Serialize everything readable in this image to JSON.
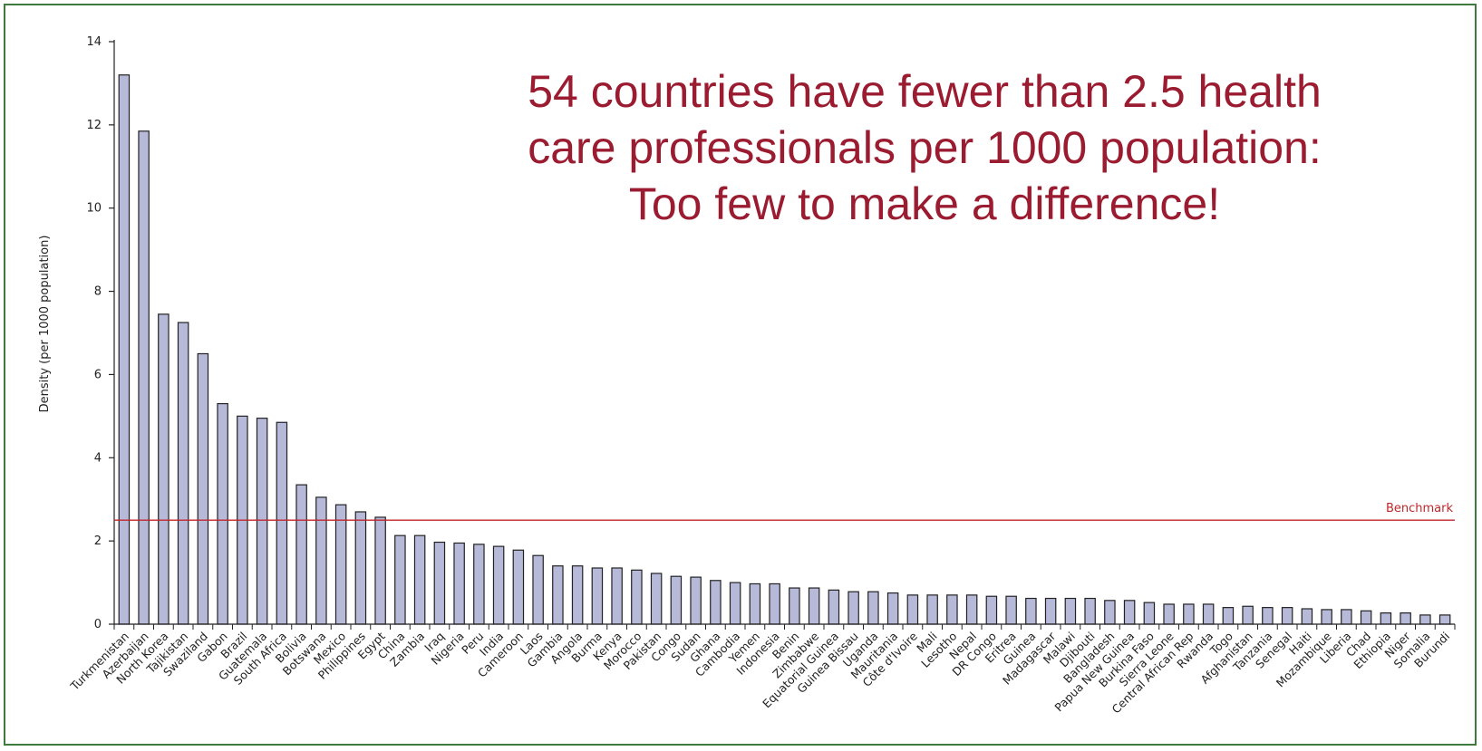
{
  "headline": {
    "line1": "54 countries have fewer than 2.5 health",
    "line2": "care professionals per 1000 population:",
    "line3": "Too few to make a difference!"
  },
  "chart_data": {
    "type": "bar",
    "ylabel": "Density (per 1000 population)",
    "ylim": [
      0,
      14
    ],
    "yticks": [
      0,
      2,
      4,
      6,
      8,
      10,
      12,
      14
    ],
    "grid": false,
    "bar_color": "#b7b9d9",
    "benchmark": {
      "label": "Benchmark",
      "value": 2.5,
      "color": "#c0262a"
    },
    "categories": [
      "Turkmenistan",
      "Azerbaijan",
      "North Korea",
      "Tajikistan",
      "Swaziland",
      "Gabon",
      "Brazil",
      "Guatemala",
      "South Africa",
      "Bolivia",
      "Botswana",
      "Mexico",
      "Philippines",
      "Egypt",
      "China",
      "Zambia",
      "Iraq",
      "Nigeria",
      "Peru",
      "India",
      "Cameroon",
      "Laos",
      "Gambia",
      "Angola",
      "Burma",
      "Kenya",
      "Morocco",
      "Pakistan",
      "Congo",
      "Sudan",
      "Ghana",
      "Cambodia",
      "Yemen",
      "Indonesia",
      "Benin",
      "Zimbabwe",
      "Equatorial Guinea",
      "Guinea Bissau",
      "Uganda",
      "Mauritania",
      "Côte d'Ivoire",
      "Mali",
      "Lesotho",
      "Nepal",
      "DR Congo",
      "Eritrea",
      "Guinea",
      "Madagascar",
      "Malawi",
      "Djibouti",
      "Bangladesh",
      "Papua New Guinea",
      "Burkina Faso",
      "Sierra Leone",
      "Central African Rep",
      "Rwanda",
      "Togo",
      "Afghanistan",
      "Tanzania",
      "Senegal",
      "Haiti",
      "Mozambique",
      "Liberia",
      "Chad",
      "Ethiopia",
      "Niger",
      "Somalia",
      "Burundi"
    ],
    "values": [
      13.2,
      11.85,
      7.45,
      7.25,
      6.5,
      5.3,
      5.0,
      4.95,
      4.85,
      3.35,
      3.05,
      2.87,
      2.7,
      2.57,
      2.13,
      2.13,
      1.97,
      1.95,
      1.92,
      1.87,
      1.78,
      1.65,
      1.4,
      1.4,
      1.35,
      1.35,
      1.3,
      1.22,
      1.15,
      1.13,
      1.05,
      1.0,
      0.97,
      0.97,
      0.87,
      0.87,
      0.82,
      0.78,
      0.78,
      0.75,
      0.7,
      0.7,
      0.7,
      0.7,
      0.67,
      0.67,
      0.62,
      0.62,
      0.62,
      0.62,
      0.57,
      0.57,
      0.52,
      0.48,
      0.48,
      0.48,
      0.4,
      0.43,
      0.4,
      0.4,
      0.37,
      0.35,
      0.35,
      0.32,
      0.27,
      0.27,
      0.22,
      0.22
    ]
  }
}
